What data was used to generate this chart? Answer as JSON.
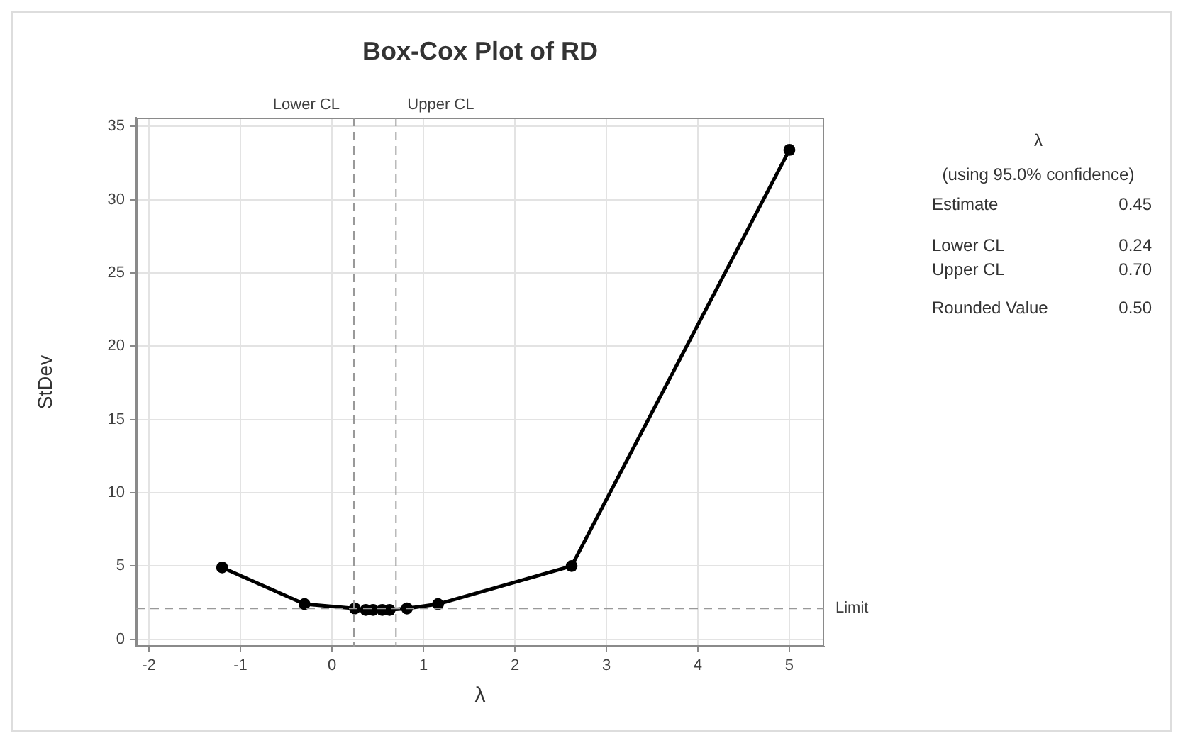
{
  "chart_data": {
    "type": "line",
    "title": "Box-Cox Plot of RD",
    "xlabel": "λ",
    "ylabel": "StDev",
    "x": [
      -1.2,
      -0.3,
      0.25,
      0.37,
      0.45,
      0.55,
      0.63,
      0.82,
      1.16,
      2.62,
      5
    ],
    "series": [
      {
        "color": "#000000",
        "values": [
          4.9,
          2.4,
          2.1,
          2.0,
          2.0,
          2.0,
          2.0,
          2.1,
          2.4,
          5.0,
          33.4
        ]
      }
    ],
    "xlim": [
      -2.14,
      5.38
    ],
    "xticks": [
      -2,
      -1,
      0,
      1,
      2,
      3,
      4,
      5
    ],
    "ylim": [
      -0.5,
      35.6
    ],
    "yticks": [
      0,
      5,
      10,
      15,
      20,
      25,
      30,
      35
    ],
    "ref_lines": [
      {
        "axis": "x",
        "value": 0.24,
        "label": "Lower CL",
        "color": "#999999",
        "line_style": "dashed"
      },
      {
        "axis": "x",
        "value": 0.7,
        "label": "Upper CL",
        "color": "#999999",
        "line_style": "dashed"
      },
      {
        "axis": "y",
        "value": 2.1,
        "label": "Limit",
        "color": "#999999",
        "line_style": "dashed"
      }
    ],
    "annotations": [
      "λ",
      "(using 95.0% confidence)",
      "Estimate",
      "0.45",
      "Lower CL",
      "0.24",
      "Upper CL",
      "0.70",
      "Rounded Value",
      "0.50"
    ],
    "grid": true,
    "marker": "circle",
    "line_style": "solid"
  }
}
